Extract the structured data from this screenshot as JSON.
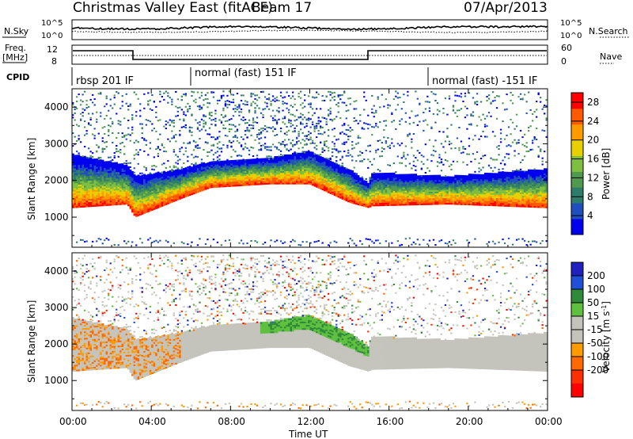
{
  "header": {
    "title": "Christmas Valley East (fitACF)",
    "beam": "Beam 17",
    "date": "07/Apr/2013"
  },
  "labels": {
    "nsky": "N.Sky",
    "nsearch": "N.Search",
    "freq_line1": "Freq.",
    "freq_line2": "[MHz]",
    "nave": "Nave",
    "cpid": "CPID"
  },
  "noise_panel": {
    "left_ticks": [
      "10^5",
      "10^0"
    ],
    "right_ticks": [
      "10^5",
      "10^0"
    ]
  },
  "freq_panel": {
    "left_ticks": [
      "12",
      "8"
    ],
    "right_ticks": [
      "60",
      "0"
    ]
  },
  "cpid_segments": [
    {
      "label": "rbsp 201 IF",
      "start_hour": 0
    },
    {
      "label": "normal (fast) 151 IF",
      "start_hour": 6
    },
    {
      "label": "normal (fast) -151 IF",
      "start_hour": 18
    }
  ],
  "colors": {
    "power_scale": [
      "#0000ee",
      "#1f4fbf",
      "#2e7d6a",
      "#4f9a4f",
      "#7fbf3f",
      "#e8d000",
      "#ff9b00",
      "#ff5a00",
      "#ff0000"
    ],
    "velocity_scale": [
      "#2020c0",
      "#2050d8",
      "#2f8a3a",
      "#5fc040",
      "#c4c4bc",
      "#c4c4bc",
      "#ff9a00",
      "#ff6a00",
      "#ff3000",
      "#ff0000"
    ]
  },
  "chart_data": [
    {
      "type": "heatmap",
      "title": "Power",
      "ylabel": "Slant Range [km]",
      "xlabel": "Time UT",
      "x_ticks": [
        "00:00",
        "04:00",
        "08:00",
        "12:00",
        "16:00",
        "20:00",
        "00:00"
      ],
      "xlim_hours": [
        0,
        24
      ],
      "y_ticks": [
        1000,
        2000,
        3000,
        4000
      ],
      "ylim": [
        180,
        4500
      ],
      "colorbar_label": "Power [dB]",
      "colorbar_ticks": [
        4,
        8,
        12,
        16,
        20,
        24,
        28
      ],
      "colorbar_range": [
        0,
        30
      ],
      "echo_band": [
        {
          "hour": 0,
          "low": 1250,
          "high": 2700
        },
        {
          "hour": 2.8,
          "low": 1350,
          "high": 2400
        },
        {
          "hour": 3.2,
          "low": 1000,
          "high": 2100
        },
        {
          "hour": 5.5,
          "low": 1500,
          "high": 2300
        },
        {
          "hour": 7,
          "low": 1800,
          "high": 2500
        },
        {
          "hour": 10,
          "low": 1900,
          "high": 2600
        },
        {
          "hour": 12,
          "low": 1900,
          "high": 2800
        },
        {
          "hour": 14,
          "low": 1400,
          "high": 2300
        },
        {
          "hour": 15,
          "low": 1250,
          "high": 1900
        },
        {
          "hour": 15.1,
          "low": 1300,
          "high": 2200
        },
        {
          "hour": 19,
          "low": 1350,
          "high": 2100
        },
        {
          "hour": 24,
          "low": 1250,
          "high": 2300
        }
      ]
    },
    {
      "type": "heatmap",
      "title": "Velocity",
      "ylabel": "Slant Range [km]",
      "xlabel": "Time UT",
      "x_ticks": [
        "00:00",
        "04:00",
        "08:00",
        "12:00",
        "16:00",
        "20:00",
        "00:00"
      ],
      "xlim_hours": [
        0,
        24
      ],
      "y_ticks": [
        1000,
        2000,
        3000,
        4000
      ],
      "ylim": [
        180,
        4500
      ],
      "colorbar_label": "Velocity [m s^-1]",
      "colorbar_ticks": [
        200,
        100,
        50,
        15,
        -15,
        -50,
        -100,
        -200
      ],
      "colorbar_range": [
        -250,
        250
      ]
    }
  ],
  "axes_text": {
    "x_title": "Time UT",
    "y_title": "Slant Range [km]",
    "power_label": "Power [dB]",
    "velocity_label": "Velocity [m s",
    "velocity_exp": "-1",
    "velocity_close": "]"
  }
}
